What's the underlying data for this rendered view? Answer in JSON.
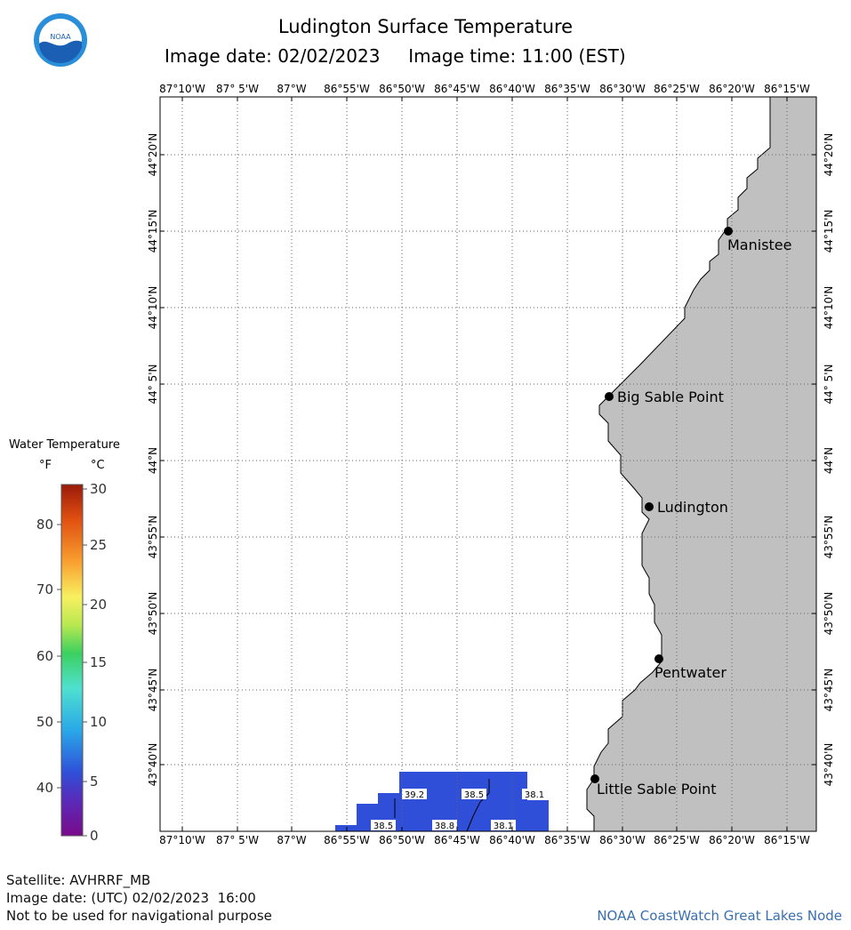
{
  "header": {
    "title": "Ludington Surface Temperature",
    "date_label": "Image date: 02/02/2023",
    "time_label": "Image time: 11:00 (EST)"
  },
  "logo": {
    "text": "NOAA",
    "colors": {
      "top": "#ffffff",
      "wave": "#1a5fb4",
      "ring": "#2a8fd8"
    }
  },
  "map": {
    "colors": {
      "land": "#c0c0c0",
      "water": "#ffffff",
      "sst": "#2f4fd8",
      "sst_dark": "#2a3fcf"
    },
    "lon_labels": [
      "87°10'W",
      "87° 5'W",
      "87°W",
      "86°55'W",
      "86°50'W",
      "86°45'W",
      "86°40'W",
      "86°35'W",
      "86°30'W",
      "86°25'W",
      "86°20'W",
      "86°15'W"
    ],
    "lat_labels": [
      "44°20'N",
      "44°15'N",
      "44°10'N",
      "44° 5'N",
      "44°N",
      "43°55'N",
      "43°50'N",
      "43°45'N",
      "43°40'N"
    ],
    "places": [
      {
        "name": "Manistee"
      },
      {
        "name": "Big Sable Point"
      },
      {
        "name": "Ludington"
      },
      {
        "name": "Pentwater"
      },
      {
        "name": "Little Sable Point"
      }
    ],
    "temps": [
      "39.2",
      "38.5",
      "38.1",
      "38.5",
      "38.8",
      "38.1"
    ]
  },
  "legend": {
    "title": "Water Temperature",
    "unit_f": "°F",
    "unit_c": "°C",
    "f_ticks": [
      "80",
      "70",
      "60",
      "50",
      "40"
    ],
    "c_ticks": [
      "30",
      "25",
      "20",
      "15",
      "10",
      "5",
      "0"
    ]
  },
  "footer": {
    "satellite": "Satellite: AVHRRF_MB",
    "utc_date": "Image date: (UTC) 02/02/2023  16:00",
    "disclaimer": "Not to be used for navigational purpose",
    "credit": "NOAA CoastWatch Great Lakes Node"
  }
}
